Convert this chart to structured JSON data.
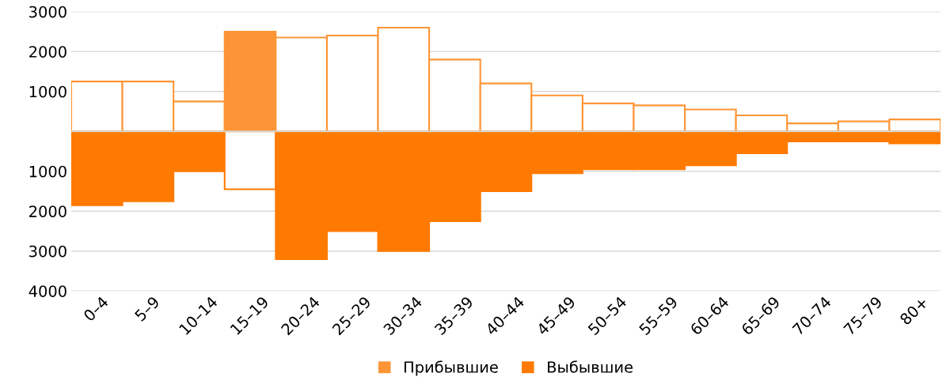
{
  "chart_data": {
    "type": "bar",
    "categories": [
      "0–4",
      "5–9",
      "10–14",
      "15–19",
      "20–24",
      "25–29",
      "30–34",
      "35–39",
      "40–44",
      "45–49",
      "50–54",
      "55–59",
      "60–64",
      "65–69",
      "70–74",
      "75–79",
      "80+"
    ],
    "series": [
      {
        "name": "Прибывшие",
        "color": "#fd9536",
        "values": [
          1250,
          1250,
          750,
          2500,
          2350,
          2400,
          2600,
          1800,
          1200,
          900,
          700,
          650,
          550,
          400,
          200,
          250,
          300
        ],
        "colors": [
          "#ffffff",
          "#ffffff",
          "#ffffff",
          "#fd9536",
          "#ffffff",
          "#ffffff",
          "#ffffff",
          "#ffffff",
          "#ffffff",
          "#ffffff",
          "#ffffff",
          "#ffffff",
          "#ffffff",
          "#ffffff",
          "#ffffff",
          "#ffffff",
          "#ffffff"
        ]
      },
      {
        "name": "Выбывшие",
        "color": "#ff7a00",
        "values": [
          -1850,
          -1750,
          -1000,
          -1450,
          -3200,
          -2500,
          -3000,
          -2250,
          -1500,
          -1050,
          -950,
          -950,
          -850,
          -550,
          -250,
          -250,
          -300
        ],
        "colors": [
          "#ff7a00",
          "#ff7a00",
          "#ff7a00",
          "#ffffff",
          "#ff7a00",
          "#ff7a00",
          "#ff7a00",
          "#ff7a00",
          "#ff7a00",
          "#ff7a00",
          "#ff7a00",
          "#ff7a00",
          "#ff7a00",
          "#ff7a00",
          "#ff7a00",
          "#ff7a00",
          "#ff7a00"
        ]
      }
    ],
    "ylim": [
      -4000,
      3000
    ],
    "yticks": [
      {
        "value": -4000,
        "label": "4000"
      },
      {
        "value": -3000,
        "label": "3000"
      },
      {
        "value": -2000,
        "label": "2000"
      },
      {
        "value": -1000,
        "label": "1000"
      },
      1000,
      2000,
      3000
    ],
    "ref_lines": [
      {
        "axis": "y",
        "value": 0,
        "color": "#d9d9d9"
      }
    ],
    "stacked": true,
    "grid": "y",
    "legend": "bottom"
  }
}
